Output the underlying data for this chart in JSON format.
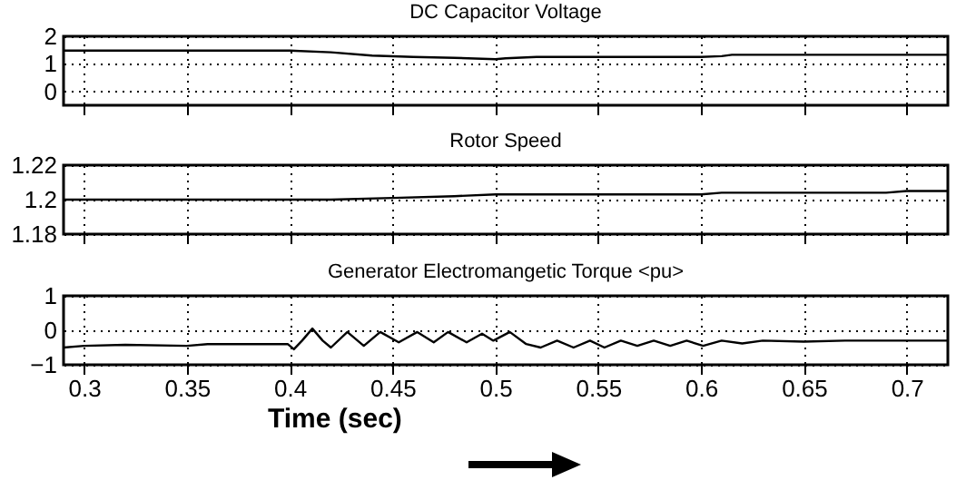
{
  "chart_data": [
    {
      "type": "line",
      "title": "DC Capacitor Voltage",
      "x": [
        0.29,
        0.4,
        0.42,
        0.44,
        0.46,
        0.48,
        0.5,
        0.505,
        0.52,
        0.55,
        0.6,
        0.61,
        0.615,
        0.65,
        0.72
      ],
      "values": [
        1.48,
        1.48,
        1.42,
        1.3,
        1.25,
        1.22,
        1.17,
        1.2,
        1.25,
        1.25,
        1.25,
        1.28,
        1.33,
        1.33,
        1.33
      ],
      "color": "#000000",
      "xlim": [
        0.29,
        0.72
      ],
      "xticks": [
        0.3,
        0.35,
        0.4,
        0.45,
        0.5,
        0.55,
        0.6,
        0.65,
        0.7
      ],
      "ylim": [
        -0.5,
        2
      ],
      "yticks": [
        0,
        1,
        2
      ],
      "grid": true,
      "tick_labels": "y"
    },
    {
      "type": "line",
      "title": "Rotor Speed",
      "x": [
        0.29,
        0.42,
        0.45,
        0.48,
        0.5,
        0.6,
        0.61,
        0.69,
        0.7,
        0.72
      ],
      "values": [
        1.2,
        1.2,
        1.201,
        1.202,
        1.203,
        1.203,
        1.204,
        1.204,
        1.205,
        1.205
      ],
      "color": "#000000",
      "xlim": [
        0.29,
        0.72
      ],
      "xticks": [
        0.3,
        0.35,
        0.4,
        0.45,
        0.5,
        0.55,
        0.6,
        0.65,
        0.7
      ],
      "ylim": [
        1.18,
        1.22
      ],
      "yticks": [
        1.18,
        1.2,
        1.22
      ],
      "grid": true,
      "tick_labels": "y"
    },
    {
      "type": "line",
      "title": "Generator Electromangetic Torque <pu>",
      "xlabel": "Time (sec)",
      "x": [
        0.29,
        0.3,
        0.32,
        0.35,
        0.36,
        0.399,
        0.402,
        0.406,
        0.411,
        0.416,
        0.42,
        0.428,
        0.436,
        0.444,
        0.453,
        0.462,
        0.47,
        0.477,
        0.486,
        0.4935,
        0.499,
        0.507,
        0.515,
        0.522,
        0.53,
        0.538,
        0.546,
        0.553,
        0.561,
        0.569,
        0.577,
        0.585,
        0.593,
        0.601,
        0.61,
        0.62,
        0.63,
        0.65,
        0.67,
        0.69,
        0.72
      ],
      "values": [
        -0.5,
        -0.45,
        -0.42,
        -0.45,
        -0.4,
        -0.4,
        -0.55,
        -0.3,
        0.05,
        -0.3,
        -0.5,
        -0.05,
        -0.45,
        -0.05,
        -0.35,
        -0.05,
        -0.35,
        -0.05,
        -0.35,
        -0.1,
        -0.3,
        -0.05,
        -0.4,
        -0.5,
        -0.3,
        -0.5,
        -0.3,
        -0.5,
        -0.3,
        -0.45,
        -0.3,
        -0.45,
        -0.3,
        -0.45,
        -0.3,
        -0.38,
        -0.3,
        -0.33,
        -0.3,
        -0.3,
        -0.3
      ],
      "color": "#000000",
      "xlim": [
        0.29,
        0.72
      ],
      "xticks": [
        0.3,
        0.35,
        0.4,
        0.45,
        0.5,
        0.55,
        0.6,
        0.65,
        0.7
      ],
      "ylim": [
        -1,
        1
      ],
      "yticks": [
        -1,
        0,
        1
      ],
      "grid": true
    }
  ]
}
